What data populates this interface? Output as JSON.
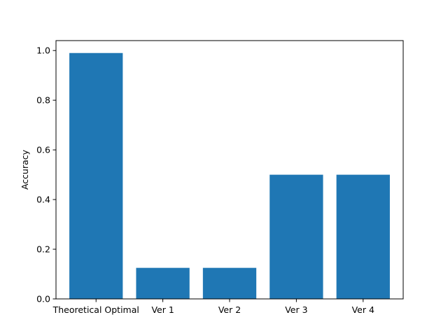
{
  "chart_data": {
    "type": "bar",
    "categories": [
      "Theoretical Optimal",
      "Ver 1",
      "Ver 2",
      "Ver 3",
      "Ver 4"
    ],
    "values": [
      0.99,
      0.125,
      0.125,
      0.5,
      0.5
    ],
    "title": "",
    "xlabel": "",
    "ylabel": "Accuracy",
    "ylim": [
      0,
      1.04
    ],
    "yticks": [
      "0.0",
      "0.2",
      "0.4",
      "0.6",
      "0.8",
      "1.0"
    ],
    "grid": false,
    "legend": "none",
    "bar_color": "#1f77b4"
  }
}
